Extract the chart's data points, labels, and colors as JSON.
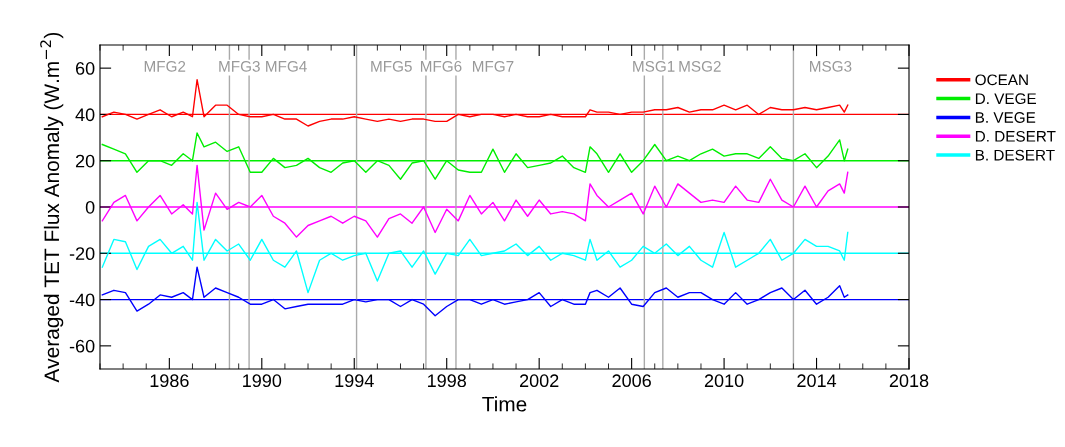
{
  "chart_data": {
    "type": "line",
    "xlabel": "Time",
    "ylabel": "Averaged TET Flux Anomaly (W.m$^{−2}$)",
    "xlim": [
      1983,
      2018
    ],
    "xticks": [
      1986,
      1990,
      1994,
      1998,
      2002,
      2006,
      2010,
      2014,
      2018
    ],
    "ylim": [
      -70,
      70
    ],
    "yticks": [
      -60,
      -40,
      -20,
      0,
      20,
      40,
      60
    ],
    "grid": false,
    "legend": "top right",
    "marker": "none",
    "line_style": "solid",
    "x": [
      1983.1,
      1983.6,
      1984.1,
      1984.6,
      1985.1,
      1985.6,
      1986.1,
      1986.6,
      1987.0,
      1987.2,
      1987.5,
      1988.0,
      1988.5,
      1989.0,
      1989.5,
      1990.0,
      1990.5,
      1991.0,
      1991.5,
      1992.0,
      1992.5,
      1993.0,
      1993.5,
      1994.0,
      1994.5,
      1995.0,
      1995.5,
      1996.0,
      1996.5,
      1997.0,
      1997.5,
      1998.0,
      1998.5,
      1999.0,
      1999.5,
      2000.0,
      2000.5,
      2001.0,
      2001.5,
      2002.0,
      2002.5,
      2003.0,
      2003.5,
      2004.0,
      2004.2,
      2004.5,
      2005.0,
      2005.5,
      2006.0,
      2006.5,
      2007.0,
      2007.5,
      2008.0,
      2008.5,
      2009.0,
      2009.5,
      2010.0,
      2010.5,
      2011.0,
      2011.5,
      2012.0,
      2012.5,
      2013.0,
      2013.5,
      2014.0,
      2014.5,
      2015.0,
      2015.2,
      2015.35
    ],
    "series": [
      {
        "name": "OCEAN",
        "color": "#ff0000",
        "values": [
          39,
          41,
          40,
          38,
          40,
          42,
          39,
          41,
          39,
          55,
          39,
          44,
          44,
          40,
          39,
          39,
          40,
          38,
          38,
          35,
          37,
          38,
          38,
          39,
          38,
          37,
          38,
          37,
          38,
          38,
          37,
          37,
          40,
          39,
          40,
          40,
          39,
          40,
          39,
          39,
          40,
          39,
          39,
          39,
          42,
          41,
          41,
          40,
          41,
          41,
          42,
          42,
          43,
          41,
          42,
          42,
          44,
          42,
          44,
          40,
          43,
          42,
          42,
          43,
          42,
          43,
          44,
          41,
          44
        ]
      },
      {
        "name": "D. VEGE",
        "color": "#00ee00",
        "values": [
          27,
          25,
          23,
          15,
          20,
          20,
          18,
          23,
          20,
          32,
          26,
          28,
          24,
          26,
          15,
          15,
          21,
          17,
          18,
          21,
          17,
          15,
          19,
          20,
          15,
          20,
          18,
          12,
          19,
          20,
          12,
          20,
          16,
          15,
          15,
          25,
          15,
          23,
          17,
          18,
          19,
          22,
          17,
          15,
          26,
          23,
          15,
          23,
          15,
          20,
          27,
          20,
          22,
          20,
          23,
          25,
          22,
          23,
          23,
          21,
          26,
          21,
          20,
          23,
          17,
          22,
          29,
          20,
          25
        ]
      },
      {
        "name": "B. VEGE",
        "color": "#0000ff",
        "values": [
          -38,
          -36,
          -37,
          -45,
          -42,
          -38,
          -39,
          -37,
          -40,
          -26,
          -39,
          -35,
          -37,
          -39,
          -42,
          -42,
          -40,
          -44,
          -43,
          -42,
          -42,
          -42,
          -42,
          -40,
          -41,
          -40,
          -40,
          -43,
          -40,
          -42,
          -47,
          -43,
          -40,
          -40,
          -42,
          -40,
          -42,
          -41,
          -40,
          -37,
          -43,
          -40,
          -42,
          -42,
          -37,
          -36,
          -39,
          -35,
          -42,
          -43,
          -37,
          -35,
          -39,
          -37,
          -37,
          -40,
          -42,
          -37,
          -42,
          -40,
          -37,
          -35,
          -40,
          -36,
          -42,
          -39,
          -34,
          -39,
          -38
        ]
      },
      {
        "name": "D. DESERT",
        "color": "#ff00ff",
        "values": [
          -6,
          2,
          5,
          -6,
          0,
          5,
          -3,
          1,
          -3,
          18,
          -10,
          6,
          -1,
          2,
          0,
          5,
          -4,
          -7,
          -13,
          -8,
          -6,
          -4,
          -7,
          -4,
          -6,
          -13,
          -5,
          -3,
          -7,
          0,
          -11,
          -1,
          -6,
          5,
          -3,
          2,
          -6,
          3,
          -4,
          3,
          -3,
          -2,
          -3,
          -6,
          10,
          5,
          0,
          3,
          6,
          -3,
          9,
          0,
          10,
          6,
          2,
          3,
          2,
          9,
          3,
          2,
          12,
          3,
          0,
          9,
          0,
          7,
          10,
          6,
          15
        ]
      },
      {
        "name": "B. DESERT",
        "color": "#00ffff",
        "values": [
          -26,
          -14,
          -15,
          -27,
          -17,
          -14,
          -20,
          -17,
          -23,
          2,
          -23,
          -14,
          -19,
          -16,
          -23,
          -14,
          -23,
          -26,
          -19,
          -37,
          -23,
          -20,
          -23,
          -21,
          -20,
          -32,
          -20,
          -19,
          -26,
          -19,
          -29,
          -20,
          -21,
          -14,
          -21,
          -20,
          -19,
          -16,
          -21,
          -17,
          -23,
          -20,
          -21,
          -23,
          -14,
          -23,
          -19,
          -26,
          -23,
          -17,
          -20,
          -16,
          -21,
          -17,
          -23,
          -26,
          -11,
          -26,
          -23,
          -20,
          -14,
          -23,
          -20,
          -14,
          -17,
          -17,
          -19,
          -23,
          -11
        ]
      }
    ],
    "ref_lines": [
      {
        "axis": "y",
        "value": 40,
        "color": "#ff0000"
      },
      {
        "axis": "y",
        "value": 20,
        "color": "#00ee00"
      },
      {
        "axis": "y",
        "value": 0,
        "color": "#ff00ff"
      },
      {
        "axis": "y",
        "value": -20,
        "color": "#00ffff"
      },
      {
        "axis": "y",
        "value": -40,
        "color": "#0000ff"
      },
      {
        "axis": "x",
        "value": 1988.6,
        "color": "#aaaaaa",
        "label": "MFG3"
      },
      {
        "axis": "x",
        "value": 1989.45,
        "color": "#aaaaaa",
        "label": "MFG4"
      },
      {
        "axis": "x",
        "value": 1994.1,
        "color": "#aaaaaa",
        "label": "MFG5"
      },
      {
        "axis": "x",
        "value": 1997.1,
        "color": "#aaaaaa",
        "label": "MFG6"
      },
      {
        "axis": "x",
        "value": 1998.4,
        "color": "#aaaaaa",
        "label": "MFG7"
      },
      {
        "axis": "x",
        "value": 2006.55,
        "color": "#aaaaaa",
        "label": "MSG1"
      },
      {
        "axis": "x",
        "value": 2007.35,
        "color": "#aaaaaa",
        "label": "MSG2"
      },
      {
        "axis": "x",
        "value": 2013.0,
        "color": "#aaaaaa",
        "label": "MSG3"
      }
    ],
    "annotations": [
      "MFG2"
    ]
  }
}
